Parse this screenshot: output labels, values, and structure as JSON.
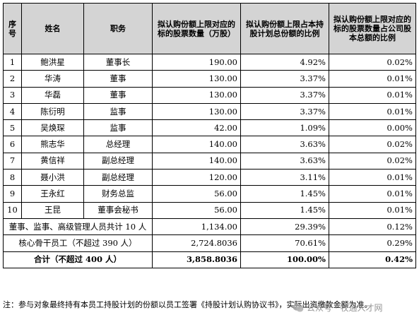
{
  "table": {
    "headers": [
      "序号",
      "姓名",
      "职务",
      "拟认购份额上限对应的标的股票数量（万股）",
      "拟认购份额上限占本持股计划总份额的比例",
      "拟认购份额上限对应的标的股票数量占公司股本总额的比例"
    ],
    "rows": [
      {
        "no": "1",
        "name": "鲍洪星",
        "title": "董事长",
        "shares": "190.00",
        "plan_pct": "4.92%",
        "capital_pct": "0.02%"
      },
      {
        "no": "2",
        "name": "华涛",
        "title": "董事",
        "shares": "130.00",
        "plan_pct": "3.37%",
        "capital_pct": "0.01%"
      },
      {
        "no": "3",
        "name": "华磊",
        "title": "董事",
        "shares": "130.00",
        "plan_pct": "3.37%",
        "capital_pct": "0.01%"
      },
      {
        "no": "4",
        "name": "陈衍明",
        "title": "监事",
        "shares": "130.00",
        "plan_pct": "3.37%",
        "capital_pct": "0.01%"
      },
      {
        "no": "5",
        "name": "吴焕琛",
        "title": "监事",
        "shares": "42.00",
        "plan_pct": "1.09%",
        "capital_pct": "0.00%"
      },
      {
        "no": "6",
        "name": "熊志华",
        "title": "总经理",
        "shares": "140.00",
        "plan_pct": "3.63%",
        "capital_pct": "0.02%"
      },
      {
        "no": "7",
        "name": "黄信祥",
        "title": "副总经理",
        "shares": "140.00",
        "plan_pct": "3.63%",
        "capital_pct": "0.02%"
      },
      {
        "no": "8",
        "name": "聂小洪",
        "title": "副总经理",
        "shares": "120.00",
        "plan_pct": "3.11%",
        "capital_pct": "0.01%"
      },
      {
        "no": "9",
        "name": "王永红",
        "title": "财务总监",
        "shares": "56.00",
        "plan_pct": "1.45%",
        "capital_pct": "0.01%"
      },
      {
        "no": "10",
        "name": "王昆",
        "title": "董事会秘书",
        "shares": "56.00",
        "plan_pct": "1.45%",
        "capital_pct": "0.01%"
      }
    ],
    "subtotal": {
      "label": "董事、监事、高级管理人员共计 10 人",
      "shares": "1,134.00",
      "plan_pct": "29.39%",
      "capital_pct": "0.12%"
    },
    "core": {
      "label": "核心骨干员工（不超过 390 人）",
      "shares": "2,724.8036",
      "plan_pct": "70.61%",
      "capital_pct": "0.29%"
    },
    "total": {
      "label": "合计（不超过 400 人）",
      "shares": "3,858.8036",
      "plan_pct": "100.00%",
      "capital_pct": "0.42%"
    }
  },
  "note": "注：参与对象最终持有本员工持股计划的份额以员工签署《持股计划认购协议书》，实际出资缴款金额为准。",
  "watermark": "公众号 · 牧通人才网"
}
